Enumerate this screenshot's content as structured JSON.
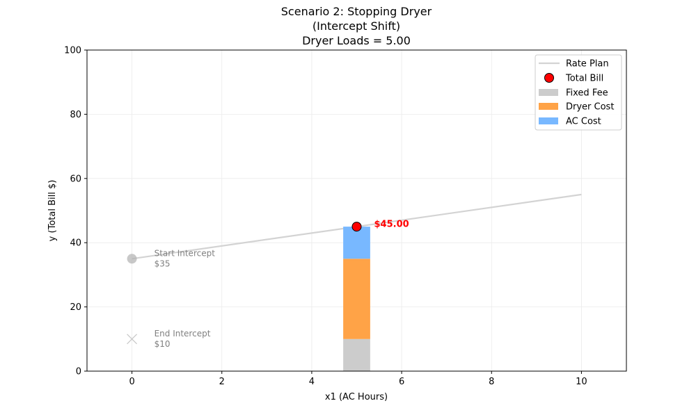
{
  "chart_data": {
    "type": "bar",
    "title_lines": [
      "Scenario 2: Stopping Dryer",
      "(Intercept Shift)",
      "Dryer Loads = 5.00"
    ],
    "xlabel": "x1 (AC Hours)",
    "ylabel": "y (Total Bill $)",
    "xlim": [
      -1,
      11
    ],
    "ylim": [
      0,
      100
    ],
    "xticks": [
      0,
      2,
      4,
      6,
      8,
      10
    ],
    "yticks": [
      0,
      20,
      40,
      60,
      80,
      100
    ],
    "grid": true,
    "legend_position": "top-right",
    "colors": {
      "rate_plan": "#d3d3d3",
      "total_bill": "#ff0000",
      "fixed_fee": "#cccccc",
      "dryer_cost": "#ffa347",
      "ac_cost": "#78b8ff",
      "start_intercept": "#b0b0b0",
      "end_intercept": "#c8c8c8"
    },
    "rate_plan_line": {
      "x": [
        0,
        10
      ],
      "y": [
        35,
        55
      ]
    },
    "stacked_bar": {
      "x": 5,
      "width": 0.6,
      "segments": [
        {
          "name": "Fixed Fee",
          "value": 10
        },
        {
          "name": "Dryer Cost",
          "value": 25
        },
        {
          "name": "AC Cost",
          "value": 10
        }
      ]
    },
    "total_bill_point": {
      "x": 5,
      "y": 45,
      "label": "$45.00"
    },
    "start_intercept": {
      "x": 0,
      "y": 35,
      "label_line1": "Start Intercept",
      "label_line2": "$35"
    },
    "end_intercept": {
      "x": 0,
      "y": 10,
      "label_line1": "End Intercept",
      "label_line2": "$10"
    },
    "legend": [
      "Rate Plan",
      "Total Bill",
      "Fixed Fee",
      "Dryer Cost",
      "AC Cost"
    ]
  }
}
